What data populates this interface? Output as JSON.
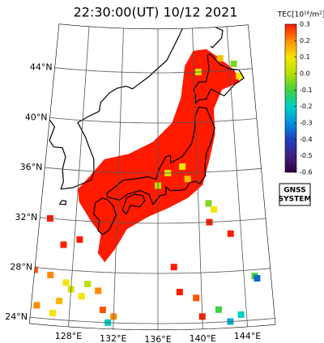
{
  "title": "22:30:00(UT) 10/12 2021",
  "colorbar": {
    "label": "TEC[10¹⁶/m²]",
    "lim": [
      -0.6,
      0.3
    ],
    "ticks": [
      0.3,
      0.2,
      0.1,
      {
        "value": 0,
        "label": "0.0"
      },
      -0.1,
      -0.2,
      -0.3,
      -0.4,
      -0.5,
      -0.6
    ],
    "colors": [
      "#ff1a00",
      "#ff8c00",
      "#f5e400",
      "#b8e000",
      "#40d040",
      "#00d0c0",
      "#0090e0",
      "#2040c0",
      "#402080",
      "#300040"
    ]
  },
  "badge": [
    "GNSS",
    "SYSTEM"
  ],
  "map": {
    "lat_ticks": [
      {
        "value": 44,
        "label": "44°N"
      },
      {
        "value": 40,
        "label": "40°N"
      },
      {
        "value": 36,
        "label": "36°N"
      },
      {
        "value": 32,
        "label": "32°N"
      },
      {
        "value": 28,
        "label": "28°N"
      },
      {
        "value": 24,
        "label": "24°N"
      }
    ],
    "lon_ticks": [
      {
        "value": 128,
        "label": "128°E"
      },
      {
        "value": 132,
        "label": "132°E"
      },
      {
        "value": 136,
        "label": "136°E"
      },
      {
        "value": 140,
        "label": "140°E"
      },
      {
        "value": 144,
        "label": "144°E"
      }
    ],
    "regions": [
      {
        "tec": 0.3,
        "outline": [
          [
            129,
            35.5
          ],
          [
            130.5,
            37
          ],
          [
            133,
            37.5
          ],
          [
            135.5,
            38.5
          ],
          [
            137.5,
            40
          ],
          [
            138.5,
            42
          ],
          [
            139,
            44.5
          ],
          [
            140,
            45.7
          ],
          [
            141.5,
            45.8
          ],
          [
            143,
            45
          ],
          [
            144.5,
            44
          ],
          [
            145,
            43
          ],
          [
            143,
            42.5
          ],
          [
            142,
            41
          ],
          [
            142,
            39
          ],
          [
            141.3,
            37
          ],
          [
            140.5,
            35
          ],
          [
            139,
            34
          ],
          [
            137,
            33.2
          ],
          [
            135,
            32.5
          ],
          [
            133,
            31.5
          ],
          [
            132,
            30
          ],
          [
            131,
            28.8
          ],
          [
            130.3,
            29.5
          ],
          [
            130.5,
            31
          ],
          [
            129.5,
            32
          ],
          [
            128.2,
            33.5
          ],
          [
            128,
            34.5
          ]
        ]
      }
    ],
    "cells": [
      [
        123.5,
        28.5,
        0.3
      ],
      [
        124,
        28,
        0.3
      ],
      [
        124.5,
        27.8,
        0.25
      ],
      [
        126,
        27.5,
        0.2
      ],
      [
        127.5,
        27,
        0.1
      ],
      [
        128,
        26.5,
        0.05
      ],
      [
        129,
        26,
        0.1
      ],
      [
        127,
        25.5,
        0.15
      ],
      [
        125,
        25,
        0.2
      ],
      [
        124,
        24.5,
        0.15
      ],
      [
        123.5,
        24.2,
        0.2
      ],
      [
        126.5,
        24.5,
        0.1
      ],
      [
        129.5,
        27,
        0
      ],
      [
        130.5,
        26.5,
        0.2
      ],
      [
        131,
        25,
        0.25
      ],
      [
        132,
        24.5,
        0.2
      ],
      [
        131.5,
        24,
        -0.2
      ],
      [
        137.5,
        28.5,
        0.3
      ],
      [
        138,
        26.5,
        0.3
      ],
      [
        139.5,
        26,
        0.25
      ],
      [
        140,
        24.5,
        0.3
      ],
      [
        141.5,
        25,
        -0.1
      ],
      [
        142.5,
        24,
        -0.25
      ],
      [
        143.5,
        24.5,
        -0.2
      ],
      [
        145,
        27.5,
        -0.1
      ],
      [
        145.2,
        27.3,
        -0.35
      ],
      [
        141,
        33.5,
        -0.05
      ],
      [
        141.5,
        33,
        0.1
      ],
      [
        143,
        31,
        0.3
      ],
      [
        125.5,
        32,
        0.3
      ],
      [
        127,
        30,
        0.3
      ],
      [
        128.5,
        30.5,
        0.3
      ],
      [
        144.5,
        44.5,
        -0.05
      ],
      [
        145,
        43.5,
        0.1
      ],
      [
        143,
        45,
        0.15
      ],
      [
        140.5,
        44,
        0.05
      ],
      [
        137,
        36,
        0.05
      ],
      [
        136,
        35,
        0
      ],
      [
        139,
        35.5,
        0.15
      ],
      [
        138.5,
        36.5,
        0.1
      ],
      [
        141,
        32,
        0.3
      ]
    ]
  }
}
